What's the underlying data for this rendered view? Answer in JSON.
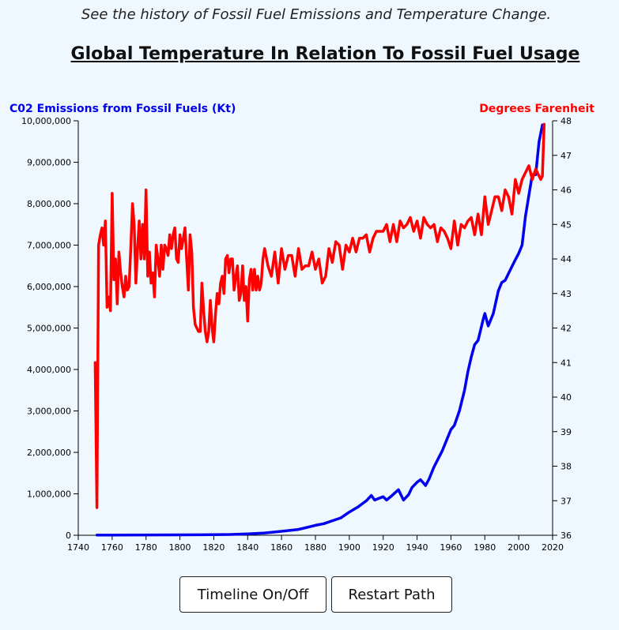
{
  "page": {
    "subtitle": "See the history of Fossil Fuel Emissions and Temperature Change.",
    "title": "Global Temperature In Relation To Fossil Fuel Usage"
  },
  "buttons": {
    "timeline": "Timeline On/Off",
    "restart": "Restart Path"
  },
  "colors": {
    "emissions": "#0000ee",
    "temperature": "#ff0000",
    "background": "#f0f8ff"
  },
  "chart_data": {
    "type": "line",
    "xlabel": "",
    "ylabel_left": "C02 Emissions from Fossil Fuels (Kt)",
    "ylabel_right": "Degrees Farenheit",
    "xlim": [
      1740,
      2020
    ],
    "ylim_left": [
      0,
      10000000
    ],
    "ylim_right": [
      36,
      48
    ],
    "x_ticks": [
      "1740",
      "1760",
      "1780",
      "1800",
      "1820",
      "1840",
      "1860",
      "1880",
      "1900",
      "1920",
      "1940",
      "1960",
      "1980",
      "2000",
      "2020"
    ],
    "y_left_ticks": [
      "0",
      "1,000,000",
      "2,000,000",
      "3,000,000",
      "4,000,000",
      "5,000,000",
      "6,000,000",
      "7,000,000",
      "8,000,000",
      "9,000,000",
      "10,000,000"
    ],
    "y_right_ticks": [
      "36",
      "37",
      "38",
      "39",
      "40",
      "41",
      "42",
      "43",
      "44",
      "45",
      "46",
      "47",
      "48"
    ],
    "grid": false,
    "series": [
      {
        "name": "C02 Emissions from Fossil Fuels (Kt)",
        "axis": "left",
        "x": [
          1751,
          1760,
          1780,
          1800,
          1810,
          1820,
          1830,
          1840,
          1850,
          1860,
          1870,
          1880,
          1885,
          1890,
          1895,
          1900,
          1905,
          1910,
          1913,
          1915,
          1918,
          1920,
          1922,
          1925,
          1929,
          1932,
          1935,
          1937,
          1940,
          1942,
          1944,
          1945,
          1947,
          1950,
          1955,
          1960,
          1962,
          1965,
          1968,
          1970,
          1972,
          1974,
          1976,
          1979,
          1980,
          1982,
          1985,
          1988,
          1990,
          1992,
          1995,
          1998,
          2000,
          2002,
          2004,
          2006,
          2008,
          2010,
          2012,
          2014
        ],
        "y": [
          3000,
          5000,
          7000,
          10000,
          12000,
          15000,
          20000,
          35000,
          55000,
          95000,
          140000,
          240000,
          280000,
          350000,
          420000,
          560000,
          680000,
          830000,
          960000,
          850000,
          900000,
          930000,
          850000,
          950000,
          1100000,
          850000,
          980000,
          1150000,
          1280000,
          1340000,
          1250000,
          1200000,
          1350000,
          1650000,
          2050000,
          2550000,
          2650000,
          3000000,
          3500000,
          3950000,
          4300000,
          4600000,
          4700000,
          5200000,
          5350000,
          5050000,
          5350000,
          5900000,
          6100000,
          6150000,
          6400000,
          6650000,
          6800000,
          7000000,
          7700000,
          8200000,
          8700000,
          8700000,
          9500000,
          9900000
        ]
      },
      {
        "name": "Degrees Farenheit",
        "axis": "right",
        "x": [
          1750,
          1751,
          1752,
          1753,
          1754,
          1755,
          1756,
          1757,
          1758,
          1759,
          1760,
          1761,
          1762,
          1763,
          1764,
          1765,
          1766,
          1767,
          1768,
          1769,
          1770,
          1771,
          1772,
          1773,
          1774,
          1775,
          1776,
          1777,
          1778,
          1779,
          1780,
          1781,
          1782,
          1783,
          1784,
          1785,
          1786,
          1787,
          1788,
          1789,
          1790,
          1791,
          1792,
          1793,
          1794,
          1795,
          1796,
          1797,
          1798,
          1799,
          1800,
          1801,
          1802,
          1803,
          1804,
          1805,
          1806,
          1807,
          1808,
          1809,
          1810,
          1811,
          1812,
          1813,
          1814,
          1815,
          1816,
          1817,
          1818,
          1819,
          1820,
          1821,
          1822,
          1823,
          1824,
          1825,
          1826,
          1827,
          1828,
          1829,
          1830,
          1831,
          1832,
          1833,
          1834,
          1835,
          1836,
          1837,
          1838,
          1839,
          1840,
          1841,
          1842,
          1843,
          1844,
          1845,
          1846,
          1847,
          1848,
          1849,
          1850,
          1852,
          1854,
          1856,
          1858,
          1860,
          1862,
          1864,
          1866,
          1868,
          1870,
          1872,
          1874,
          1876,
          1878,
          1880,
          1882,
          1884,
          1886,
          1888,
          1890,
          1892,
          1894,
          1896,
          1898,
          1900,
          1902,
          1904,
          1906,
          1908,
          1910,
          1912,
          1914,
          1916,
          1918,
          1920,
          1922,
          1924,
          1926,
          1928,
          1930,
          1932,
          1934,
          1936,
          1938,
          1940,
          1942,
          1944,
          1946,
          1948,
          1950,
          1952,
          1954,
          1956,
          1958,
          1960,
          1962,
          1964,
          1966,
          1968,
          1970,
          1972,
          1974,
          1976,
          1978,
          1980,
          1982,
          1984,
          1986,
          1988,
          1990,
          1992,
          1994,
          1996,
          1998,
          2000,
          2002,
          2004,
          2006,
          2008,
          2010,
          2012,
          2013,
          2014,
          2015
        ],
        "y": [
          41.0,
          36.8,
          44.4,
          44.7,
          44.9,
          44.4,
          45.1,
          42.6,
          42.9,
          42.5,
          45.9,
          43.4,
          44.0,
          42.7,
          44.2,
          43.6,
          43.2,
          42.9,
          43.5,
          43.1,
          43.2,
          44.3,
          45.6,
          45.0,
          43.3,
          44.3,
          45.1,
          44.0,
          45.0,
          44.0,
          46.0,
          43.5,
          44.2,
          43.3,
          43.6,
          42.9,
          44.4,
          44.0,
          43.5,
          44.4,
          43.7,
          44.4,
          44.3,
          44.1,
          44.7,
          44.3,
          44.7,
          44.9,
          44.0,
          43.9,
          44.7,
          44.3,
          44.6,
          44.9,
          44.0,
          43.1,
          44.7,
          44.2,
          42.6,
          42.1,
          42.0,
          41.9,
          41.9,
          43.3,
          42.5,
          41.9,
          41.6,
          41.9,
          42.8,
          42.0,
          41.6,
          42.4,
          43.0,
          42.7,
          43.3,
          43.5,
          43.0,
          44.0,
          44.1,
          43.6,
          44.0,
          44.0,
          43.1,
          43.5,
          43.8,
          42.8,
          43.0,
          43.8,
          42.8,
          43.2,
          42.2,
          43.4,
          43.7,
          43.1,
          43.7,
          43.1,
          43.5,
          43.1,
          43.3,
          44.0,
          44.3,
          43.8,
          43.5,
          44.2,
          43.3,
          44.3,
          43.7,
          44.1,
          44.1,
          43.5,
          44.3,
          43.7,
          43.8,
          43.8,
          44.2,
          43.7,
          44.0,
          43.3,
          43.5,
          44.3,
          43.9,
          44.5,
          44.4,
          43.7,
          44.4,
          44.2,
          44.6,
          44.2,
          44.6,
          44.6,
          44.7,
          44.2,
          44.6,
          44.8,
          44.8,
          44.8,
          45.0,
          44.5,
          45.0,
          44.5,
          45.1,
          44.9,
          45.0,
          45.2,
          44.8,
          45.1,
          44.6,
          45.2,
          45.0,
          44.9,
          45.0,
          44.5,
          44.9,
          44.8,
          44.6,
          44.3,
          45.1,
          44.4,
          45.0,
          44.9,
          45.1,
          45.2,
          44.7,
          45.3,
          44.7,
          45.8,
          45.0,
          45.4,
          45.8,
          45.8,
          45.4,
          46.0,
          45.8,
          45.3,
          46.3,
          45.9,
          46.3,
          46.5,
          46.7,
          46.3,
          46.6,
          46.4,
          46.3,
          46.4,
          47.9
        ]
      }
    ]
  }
}
